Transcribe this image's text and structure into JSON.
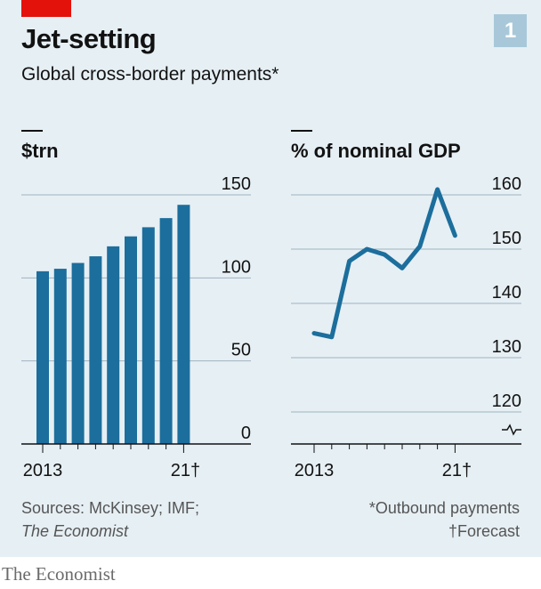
{
  "header": {
    "title": "Jet-setting",
    "subtitle": "Global cross-border payments*",
    "badge": "1"
  },
  "footer": {
    "source_line1": "Sources: McKinsey; IMF;",
    "source_line2": "The Economist",
    "note_line1": "*Outbound payments",
    "note_line2": "†Forecast",
    "brand": "The Economist"
  },
  "colors": {
    "bar": "#1c6e9c",
    "line": "#1c6e9c",
    "grid": "#9fb3bf",
    "panel": "#e6eff4",
    "red": "#e3120b"
  },
  "chart_data": [
    {
      "type": "bar",
      "ylabel": "$trn",
      "x": [
        2013,
        2014,
        2015,
        2016,
        2017,
        2018,
        2019,
        2020,
        2021
      ],
      "values": [
        104,
        105.5,
        109,
        113,
        119,
        125,
        130.5,
        136,
        144
      ],
      "ylim": [
        0,
        150
      ],
      "yticks": [
        0,
        50,
        100,
        150
      ],
      "ytick_labels": [
        "0",
        "50",
        "100",
        "150"
      ],
      "xtick_labels": [
        "2013",
        "21†"
      ],
      "grid": true
    },
    {
      "type": "line",
      "ylabel": "% of nominal GDP",
      "x": [
        2013,
        2014,
        2015,
        2016,
        2017,
        2018,
        2019,
        2020,
        2021
      ],
      "values": [
        134.5,
        133.8,
        147.8,
        150,
        149,
        146.5,
        150.5,
        161,
        152.5
      ],
      "ylim": [
        115,
        160
      ],
      "axis_break": true,
      "yticks": [
        120,
        130,
        140,
        150,
        160
      ],
      "ytick_labels": [
        "120",
        "130",
        "140",
        "150",
        "160"
      ],
      "xtick_labels": [
        "2013",
        "21†"
      ],
      "grid": true
    }
  ]
}
